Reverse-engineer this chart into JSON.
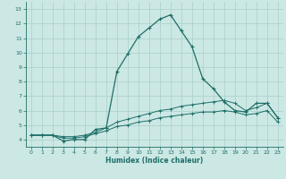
{
  "xlabel": "Humidex (Indice chaleur)",
  "xlim": [
    -0.5,
    23.5
  ],
  "ylim": [
    3.5,
    13.5
  ],
  "yticks": [
    4,
    5,
    6,
    7,
    8,
    9,
    10,
    11,
    12,
    13
  ],
  "xticks": [
    0,
    1,
    2,
    3,
    4,
    5,
    6,
    7,
    8,
    9,
    10,
    11,
    12,
    13,
    14,
    15,
    16,
    17,
    18,
    19,
    20,
    21,
    22,
    23
  ],
  "bg_color": "#cce8e4",
  "grid_color": "#a8cfca",
  "line_color": "#1e6e68",
  "series": [
    {
      "x": [
        0,
        1,
        2,
        3,
        4,
        5,
        6,
        7,
        8,
        9,
        10,
        11,
        12,
        13,
        14,
        15,
        16,
        17,
        18,
        19,
        20,
        21,
        22,
        23
      ],
      "y": [
        4.3,
        4.3,
        4.3,
        3.9,
        4.0,
        4.0,
        4.7,
        4.8,
        8.7,
        9.9,
        11.1,
        11.7,
        12.3,
        12.6,
        11.5,
        10.4,
        8.2,
        7.5,
        6.6,
        6.0,
        5.9,
        6.5,
        6.5,
        5.5
      ]
    },
    {
      "x": [
        0,
        1,
        2,
        3,
        4,
        5,
        6,
        7,
        8,
        9,
        10,
        11,
        12,
        13,
        14,
        15,
        16,
        17,
        18,
        19,
        20,
        21,
        22,
        23
      ],
      "y": [
        4.3,
        4.3,
        4.3,
        4.2,
        4.2,
        4.3,
        4.5,
        4.8,
        5.2,
        5.4,
        5.6,
        5.8,
        6.0,
        6.1,
        6.3,
        6.4,
        6.5,
        6.6,
        6.7,
        6.5,
        6.0,
        6.2,
        6.5,
        5.5
      ]
    },
    {
      "x": [
        0,
        1,
        2,
        3,
        4,
        5,
        6,
        7,
        8,
        9,
        10,
        11,
        12,
        13,
        14,
        15,
        16,
        17,
        18,
        19,
        20,
        21,
        22,
        23
      ],
      "y": [
        4.3,
        4.3,
        4.3,
        4.1,
        4.1,
        4.2,
        4.4,
        4.6,
        4.9,
        5.0,
        5.2,
        5.3,
        5.5,
        5.6,
        5.7,
        5.8,
        5.9,
        5.9,
        6.0,
        5.9,
        5.7,
        5.8,
        6.0,
        5.2
      ]
    }
  ]
}
